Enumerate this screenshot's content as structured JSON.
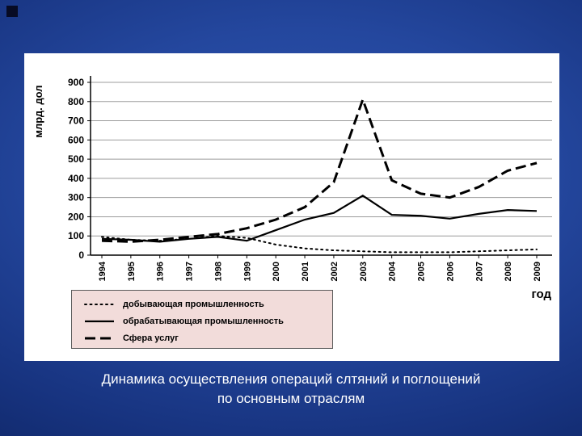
{
  "slide": {
    "caption": {
      "line1": "Динамика осуществления операций слтяний и поглощений",
      "line2": "по основным отраслям"
    }
  },
  "chart_data": {
    "type": "line",
    "title": "",
    "ylabel": "млрд. дол",
    "xlabel": "год",
    "ylim": [
      0,
      900
    ],
    "ytick_step": 100,
    "grid": true,
    "legend_position": "bottom-left",
    "line_color": "#000000",
    "legend_bg_color": "#f2dcda",
    "categories": [
      "1994",
      "1995",
      "1996",
      "1997",
      "1998",
      "1999",
      "2000",
      "2001",
      "2002",
      "2003",
      "2004",
      "2005",
      "2006",
      "2007",
      "2008",
      "2009"
    ],
    "series": [
      {
        "name": "добывающая промышленность",
        "style": "dotted",
        "values": [
          95,
          80,
          75,
          85,
          100,
          90,
          55,
          35,
          25,
          20,
          15,
          15,
          15,
          20,
          25,
          30
        ]
      },
      {
        "name": "обрабатывающая промышленность",
        "style": "solid",
        "values": [
          85,
          80,
          70,
          85,
          95,
          75,
          130,
          185,
          220,
          310,
          210,
          205,
          190,
          215,
          235,
          230
        ]
      },
      {
        "name": "Сфера услуг",
        "style": "dashed",
        "values": [
          75,
          70,
          80,
          95,
          110,
          140,
          185,
          250,
          380,
          810,
          390,
          320,
          300,
          355,
          440,
          480
        ]
      }
    ]
  }
}
